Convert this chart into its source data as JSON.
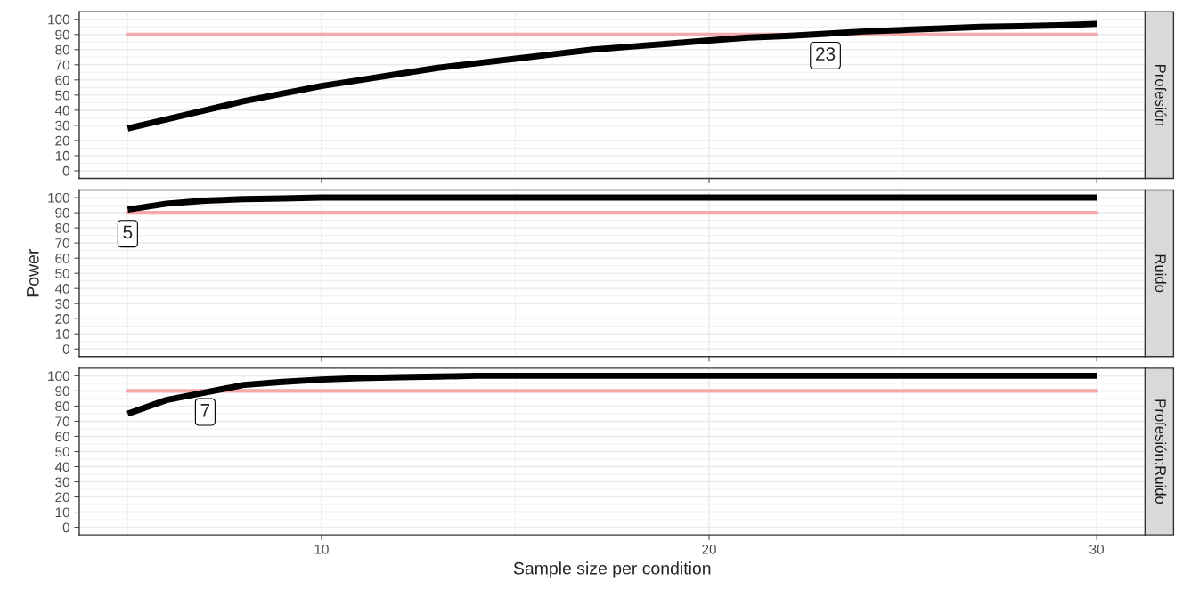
{
  "chart_data": [
    {
      "type": "line",
      "x": [
        5,
        6,
        7,
        8,
        9,
        10,
        11,
        12,
        13,
        14,
        15,
        16,
        17,
        18,
        19,
        20,
        21,
        22,
        23,
        24,
        25,
        26,
        27,
        28,
        29,
        30
      ],
      "series": [
        {
          "color": "#000000",
          "values": [
            28,
            34,
            40,
            46,
            51,
            56,
            60,
            64,
            68,
            71,
            74,
            77,
            80,
            82,
            84,
            86,
            88,
            89,
            90.5,
            92,
            93,
            94,
            95,
            95.5,
            96,
            97
          ]
        }
      ],
      "xlim": [
        3.75,
        31.25
      ],
      "xticks": [
        10,
        20,
        30
      ],
      "ylim": [
        -5,
        105
      ],
      "yticks": [
        0,
        10,
        20,
        30,
        40,
        50,
        60,
        70,
        80,
        90,
        100
      ],
      "ref_lines": [
        {
          "axis": "y",
          "value": 90,
          "color": "#f8a8a8"
        }
      ],
      "annotations": [
        "Profesión",
        {
          "text": "23",
          "x": 23,
          "y": 90
        }
      ],
      "grid": true,
      "tick_labels": "y"
    },
    {
      "type": "line",
      "ylabel": "Power",
      "x": [
        5,
        6,
        7,
        8,
        9,
        10,
        11,
        12,
        13,
        14,
        15,
        16,
        17,
        18,
        19,
        20,
        21,
        22,
        23,
        24,
        25,
        26,
        27,
        28,
        29,
        30
      ],
      "series": [
        {
          "color": "#000000",
          "values": [
            92,
            96,
            98,
            99,
            99.5,
            100,
            100,
            100,
            100,
            100,
            100,
            100,
            100,
            100,
            100,
            100,
            100,
            100,
            100,
            100,
            100,
            100,
            100,
            100,
            100,
            100
          ]
        }
      ],
      "xlim": [
        3.75,
        31.25
      ],
      "xticks": [
        10,
        20,
        30
      ],
      "ylim": [
        -5,
        105
      ],
      "yticks": [
        0,
        10,
        20,
        30,
        40,
        50,
        60,
        70,
        80,
        90,
        100
      ],
      "ref_lines": [
        {
          "axis": "y",
          "value": 90,
          "color": "#f8a8a8"
        }
      ],
      "annotations": [
        "Ruido",
        {
          "text": "5",
          "x": 5,
          "y": 90
        }
      ],
      "grid": true,
      "tick_labels": "y"
    },
    {
      "type": "line",
      "xlabel": "Sample size per condition",
      "x": [
        5,
        6,
        7,
        8,
        9,
        10,
        11,
        12,
        13,
        14,
        15,
        16,
        17,
        18,
        19,
        20,
        21,
        22,
        23,
        24,
        25,
        26,
        27,
        28,
        29,
        30
      ],
      "series": [
        {
          "color": "#000000",
          "values": [
            75,
            84,
            89,
            94,
            96,
            97.5,
            98.5,
            99,
            99.5,
            100,
            100,
            100,
            100,
            100,
            100,
            100,
            100,
            100,
            100,
            100,
            100,
            100,
            100,
            100,
            100,
            100
          ]
        }
      ],
      "xlim": [
        3.75,
        31.25
      ],
      "xticks": [
        10,
        20,
        30
      ],
      "ylim": [
        -5,
        105
      ],
      "yticks": [
        0,
        10,
        20,
        30,
        40,
        50,
        60,
        70,
        80,
        90,
        100
      ],
      "ref_lines": [
        {
          "axis": "y",
          "value": 90,
          "color": "#f8a8a8"
        }
      ],
      "annotations": [
        "Profesión:Ruido",
        {
          "text": "7",
          "x": 7,
          "y": 90
        }
      ],
      "grid": true
    }
  ]
}
